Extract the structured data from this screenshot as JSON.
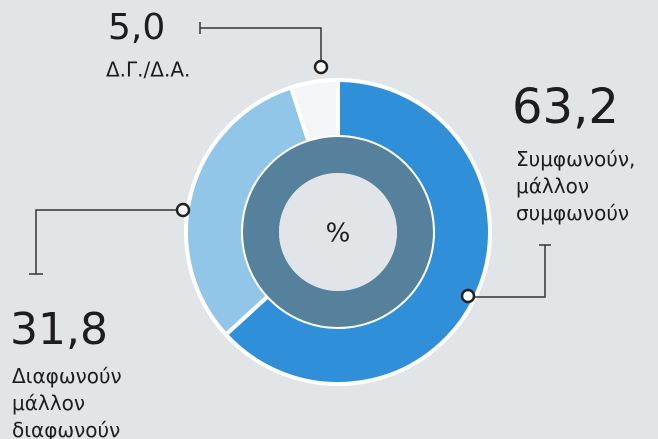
{
  "chart_data": {
    "type": "donut",
    "center_label": "%",
    "categories": [
      "Συμφωνούν, μάλλον συμφωνούν",
      "Διαφωνούν μάλλον διαφωνούν",
      "Δ.Γ./Δ.Α."
    ],
    "values": [
      63.2,
      31.8,
      5.0
    ],
    "value_labels": [
      "63,2",
      "31,8",
      "5,0"
    ],
    "colors": [
      "#2f8fd8",
      "#92c6e8",
      "#f3f5f7"
    ],
    "inner_ring_color": "#56819c"
  }
}
